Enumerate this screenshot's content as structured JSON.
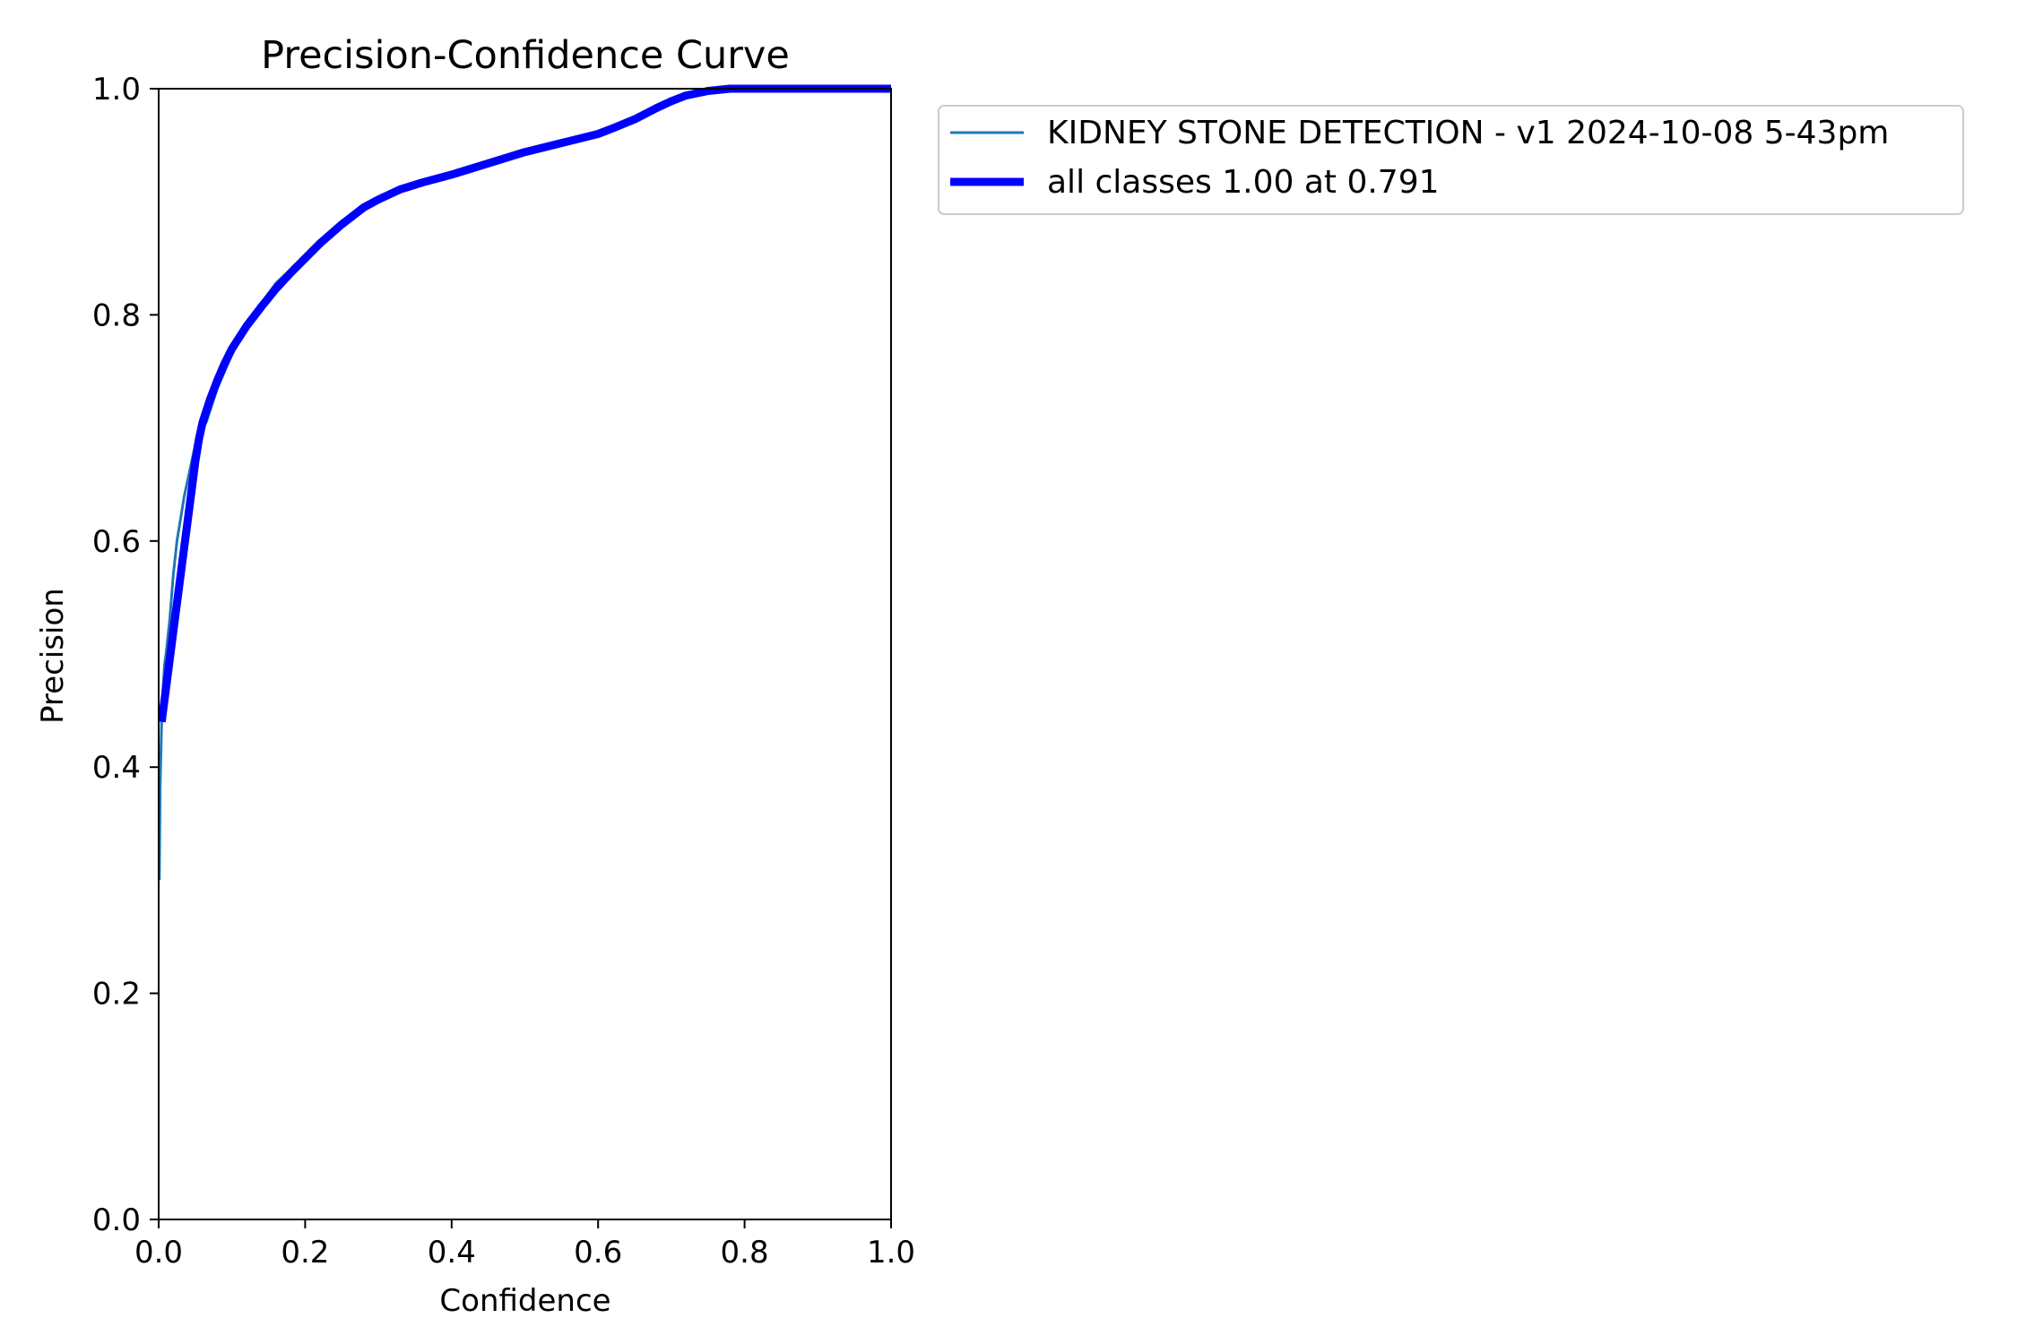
{
  "chart_data": {
    "type": "line",
    "title": "Precision-Confidence Curve",
    "xlabel": "Confidence",
    "ylabel": "Precision",
    "xlim": [
      0.0,
      1.0
    ],
    "ylim": [
      0.0,
      1.0
    ],
    "xticks": [
      "0.0",
      "0.2",
      "0.4",
      "0.6",
      "0.8",
      "1.0"
    ],
    "yticks": [
      "0.0",
      "0.2",
      "0.4",
      "0.6",
      "0.8",
      "1.0"
    ],
    "grid": false,
    "legend_position": "outside upper right",
    "series": [
      {
        "name": "KIDNEY STONE DETECTION - v1 2024-10-08 5-43pm",
        "color": "#1f77b4",
        "style": "thin",
        "x": [
          0.001,
          0.002,
          0.004,
          0.006,
          0.008,
          0.01,
          0.015,
          0.02,
          0.025,
          0.03,
          0.035,
          0.04,
          0.045,
          0.05,
          0.055,
          0.06,
          0.065,
          0.07,
          0.075,
          0.08,
          0.09,
          0.1,
          0.12,
          0.14,
          0.16,
          0.18,
          0.2,
          0.22,
          0.25,
          0.28,
          0.3,
          0.33,
          0.36,
          0.4,
          0.45,
          0.5,
          0.55,
          0.6,
          0.62,
          0.65,
          0.68,
          0.7,
          0.72,
          0.75,
          0.78,
          0.8,
          0.85,
          0.9,
          0.95,
          1.0
        ],
        "y": [
          0.3,
          0.38,
          0.44,
          0.47,
          0.49,
          0.5,
          0.53,
          0.57,
          0.6,
          0.62,
          0.64,
          0.655,
          0.67,
          0.685,
          0.698,
          0.7,
          0.705,
          0.715,
          0.725,
          0.735,
          0.75,
          0.765,
          0.79,
          0.81,
          0.828,
          0.84,
          0.852,
          0.865,
          0.882,
          0.897,
          0.903,
          0.912,
          0.918,
          0.925,
          0.935,
          0.945,
          0.953,
          0.962,
          0.967,
          0.975,
          0.985,
          0.99,
          0.995,
          0.999,
          1.0,
          1.0,
          1.0,
          1.0,
          1.0,
          1.0
        ]
      },
      {
        "name": "all classes 1.00 at 0.791",
        "color": "#0000ff",
        "style": "thick",
        "x": [
          0.004,
          0.01,
          0.015,
          0.02,
          0.025,
          0.03,
          0.035,
          0.04,
          0.045,
          0.05,
          0.055,
          0.06,
          0.07,
          0.08,
          0.09,
          0.1,
          0.12,
          0.14,
          0.16,
          0.18,
          0.2,
          0.22,
          0.25,
          0.28,
          0.3,
          0.33,
          0.36,
          0.4,
          0.45,
          0.5,
          0.55,
          0.6,
          0.62,
          0.65,
          0.68,
          0.7,
          0.72,
          0.75,
          0.78,
          0.8,
          0.85,
          0.9,
          0.95,
          1.0
        ],
        "y": [
          0.44,
          0.47,
          0.495,
          0.52,
          0.545,
          0.57,
          0.595,
          0.62,
          0.645,
          0.67,
          0.69,
          0.705,
          0.725,
          0.742,
          0.757,
          0.77,
          0.79,
          0.807,
          0.823,
          0.837,
          0.85,
          0.863,
          0.88,
          0.895,
          0.902,
          0.911,
          0.917,
          0.924,
          0.934,
          0.944,
          0.952,
          0.96,
          0.965,
          0.973,
          0.983,
          0.989,
          0.994,
          0.998,
          1.0,
          1.0,
          1.0,
          1.0,
          1.0,
          1.0
        ]
      }
    ]
  }
}
